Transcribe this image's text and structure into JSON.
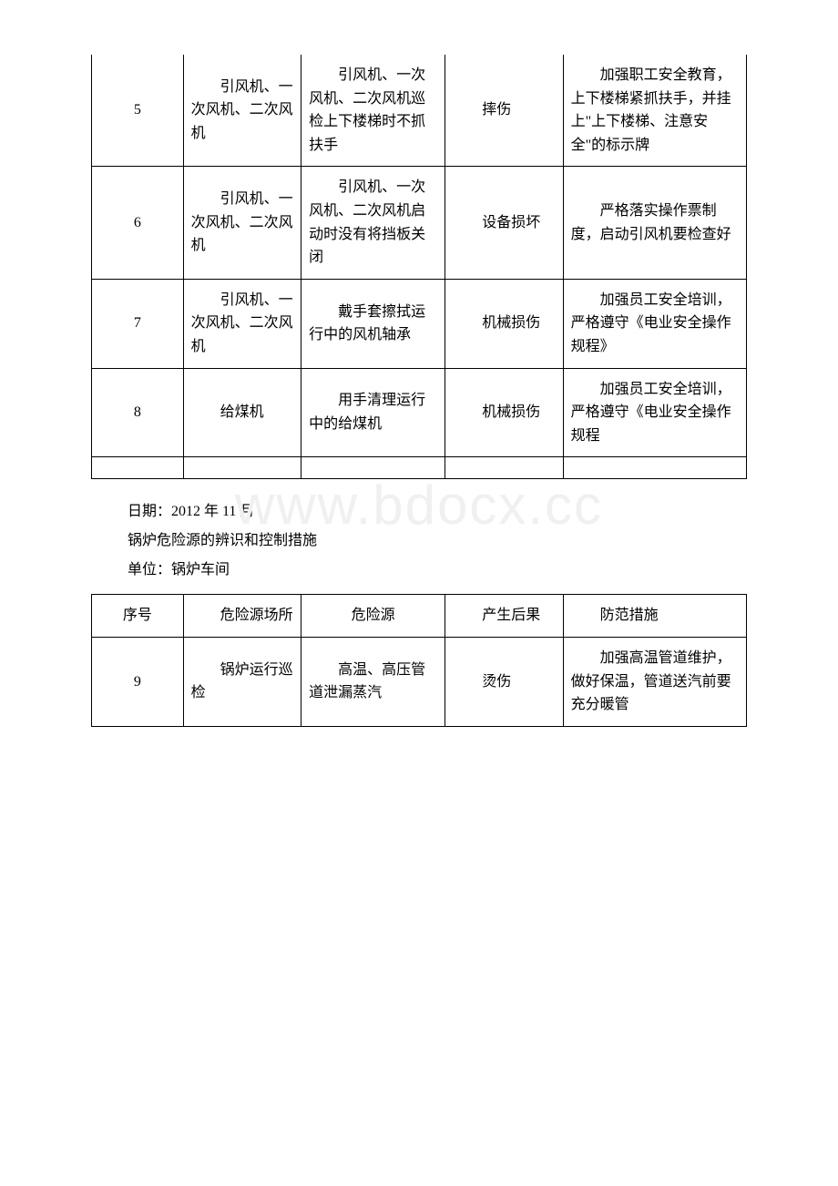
{
  "watermark": "www.bdocx.cc",
  "table1": {
    "rows": [
      {
        "seq": "5",
        "location": "　　引风机、一次风机、二次风机",
        "hazard": "　　引风机、一次风机、二次风机巡检上下楼梯时不抓扶手",
        "result": "　　摔伤",
        "measure": "　　加强职工安全教育，上下楼梯紧抓扶手，并挂上\"上下楼梯、注意安全\"的标示牌"
      },
      {
        "seq": "6",
        "location": "　　引风机、一次风机、二次风机",
        "hazard": "　　引风机、一次风机、二次风机启动时没有将挡板关闭",
        "result": "　　设备损坏",
        "measure": "　　严格落实操作票制度，启动引风机要检查好"
      },
      {
        "seq": "7",
        "location": "　　引风机、一次风机、二次风机",
        "hazard": "　　戴手套擦拭运行中的风机轴承",
        "result": "　　机械损伤",
        "measure": "　　加强员工安全培训，严格遵守《电业安全操作规程》"
      },
      {
        "seq": "8",
        "location": "　　给煤机",
        "hazard": "　　用手清理运行中的给煤机",
        "result": "　　机械损伤",
        "measure": "　　加强员工安全培训，严格遵守《电业安全操作规程"
      }
    ]
  },
  "midText": {
    "date": "日期：2012 年 11 月",
    "title": "锅炉危险源的辨识和控制措施",
    "unit": "单位：锅炉车间"
  },
  "table2": {
    "headers": {
      "seq": "序号",
      "location": "　　危险源场所",
      "hazard": "危险源",
      "result": "　　产生后果",
      "measure": "　　防范措施"
    },
    "rows": [
      {
        "seq": "9",
        "location": "　　锅炉运行巡检",
        "hazard": "　　高温、高压管道泄漏蒸汽",
        "result": "　　烫伤",
        "measure": "　　加强高温管道维护，做好保温，管道送汽前要充分暖管"
      }
    ]
  }
}
